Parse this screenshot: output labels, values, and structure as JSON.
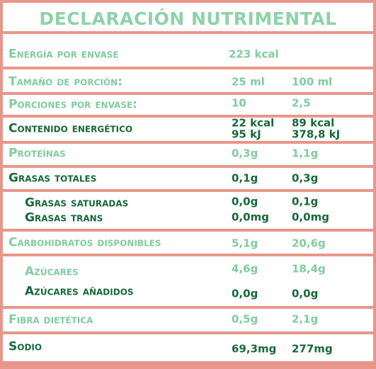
{
  "title": "DECLARACIÓN NUTRIMENTAL",
  "rows": [
    {
      "label": "Energía por envase",
      "cells": [
        "223 kcal"
      ]
    },
    {
      "label": "Tamaño de porción:",
      "cells": [
        "25 ml",
        "100 ml"
      ]
    },
    {
      "label": "Porciones por envase:",
      "cells": [
        "10",
        "2,5"
      ]
    },
    {
      "label": "Contenido energético",
      "cells": [
        [
          "22 kcal",
          "95 kJ"
        ],
        [
          "89 kcal",
          "378,8 kJ"
        ]
      ]
    },
    {
      "label": "Proteínas",
      "cells": [
        "0,3g",
        "1,1g"
      ]
    },
    {
      "label": "Grasas totales",
      "cells": [
        "0,1g",
        "0,3g"
      ]
    },
    {
      "label": "Grasas saturadas",
      "cells": [
        "0,0g",
        "0,1g"
      ]
    },
    {
      "label": "Grasas trans",
      "cells": [
        "0,0mg",
        "0,0mg"
      ]
    },
    {
      "label": "Carbohidratos disponibles",
      "cells": [
        "5,1g",
        "20,6g"
      ]
    },
    {
      "label": "Azúcares",
      "cells": [
        "4,6g",
        "18,4g"
      ]
    },
    {
      "label": "Azúcares añadidos",
      "cells": [
        "0,0g",
        "0,0g"
      ]
    },
    {
      "label": "Fibra dietética",
      "cells": [
        "0,5g",
        "2,1g"
      ]
    },
    {
      "label": "Sodio",
      "cells": [
        "69,3mg",
        "277mg"
      ]
    }
  ]
}
